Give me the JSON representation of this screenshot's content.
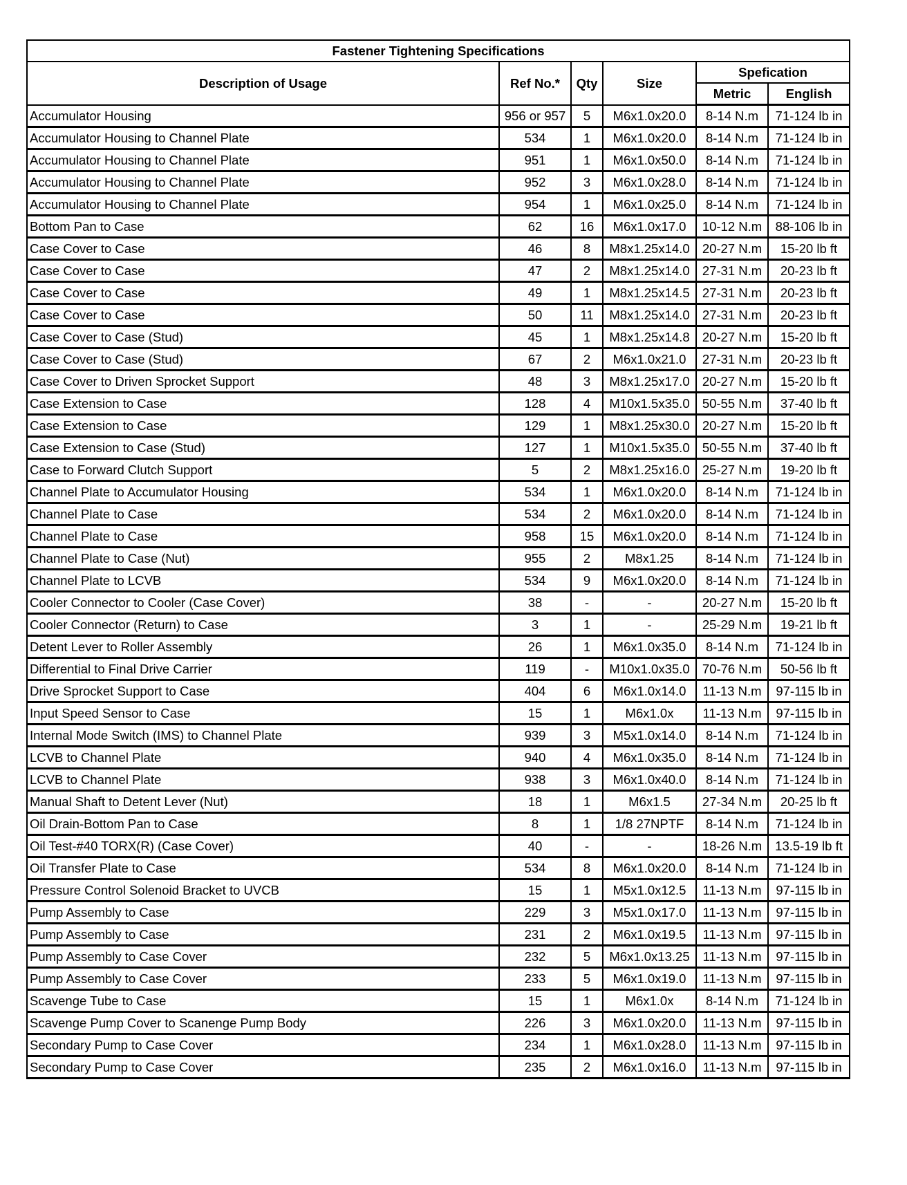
{
  "title": "Fastener Tightening Specifications",
  "headers": {
    "description": "Description of Usage",
    "ref": "Ref No.*",
    "qty": "Qty",
    "size": "Size",
    "spec": "Spefication",
    "metric": "Metric",
    "english": "English"
  },
  "rows": [
    [
      "Accumulator Housing",
      "956 or 957",
      "5",
      "M6x1.0x20.0",
      "8-14 N.m",
      "71-124 lb in"
    ],
    [
      "Accumulator Housing to Channel Plate",
      "534",
      "1",
      "M6x1.0x20.0",
      "8-14 N.m",
      "71-124 lb in"
    ],
    [
      "Accumulator Housing to Channel Plate",
      "951",
      "1",
      "M6x1.0x50.0",
      "8-14 N.m",
      "71-124 lb in"
    ],
    [
      "Accumulator Housing to Channel Plate",
      "952",
      "3",
      "M6x1.0x28.0",
      "8-14 N.m",
      "71-124 lb in"
    ],
    [
      "Accumulator Housing to Channel Plate",
      "954",
      "1",
      "M6x1.0x25.0",
      "8-14 N.m",
      "71-124 lb in"
    ],
    [
      "Bottom Pan to Case",
      "62",
      "16",
      "M6x1.0x17.0",
      "10-12 N.m",
      "88-106 lb in"
    ],
    [
      "Case Cover to Case",
      "46",
      "8",
      "M8x1.25x14.0",
      "20-27 N.m",
      "15-20 lb ft"
    ],
    [
      "Case Cover to Case",
      "47",
      "2",
      "M8x1.25x14.0",
      "27-31 N.m",
      "20-23 lb ft"
    ],
    [
      "Case Cover to Case",
      "49",
      "1",
      "M8x1.25x14.5",
      "27-31 N.m",
      "20-23 lb ft"
    ],
    [
      "Case Cover to Case",
      "50",
      "11",
      "M8x1.25x14.0",
      "27-31 N.m",
      "20-23 lb ft"
    ],
    [
      "Case Cover to Case (Stud)",
      "45",
      "1",
      "M8x1.25x14.8",
      "20-27 N.m",
      "15-20 lb ft"
    ],
    [
      "Case Cover to Case (Stud)",
      "67",
      "2",
      "M6x1.0x21.0",
      "27-31 N.m",
      "20-23 lb ft"
    ],
    [
      "Case Cover to Driven Sprocket Support",
      "48",
      "3",
      "M8x1.25x17.0",
      "20-27 N.m",
      "15-20 lb ft"
    ],
    [
      "Case Extension to Case",
      "128",
      "4",
      "M10x1.5x35.0",
      "50-55 N.m",
      "37-40 lb ft"
    ],
    [
      "Case Extension to Case",
      "129",
      "1",
      "M8x1.25x30.0",
      "20-27 N.m",
      "15-20 lb ft"
    ],
    [
      "Case Extension to Case (Stud)",
      "127",
      "1",
      "M10x1.5x35.0",
      "50-55 N.m",
      "37-40 lb ft"
    ],
    [
      "Case to Forward Clutch Support",
      "5",
      "2",
      "M8x1.25x16.0",
      "25-27 N.m",
      "19-20 lb ft"
    ],
    [
      "Channel Plate to Accumulator Housing",
      "534",
      "1",
      "M6x1.0x20.0",
      "8-14 N.m",
      "71-124 lb in"
    ],
    [
      "Channel Plate to Case",
      "534",
      "2",
      "M6x1.0x20.0",
      "8-14 N.m",
      "71-124 lb in"
    ],
    [
      "Channel Plate to Case",
      "958",
      "15",
      "M6x1.0x20.0",
      "8-14 N.m",
      "71-124 lb in"
    ],
    [
      "Channel Plate to Case (Nut)",
      "955",
      "2",
      "M8x1.25",
      "8-14 N.m",
      "71-124 lb in"
    ],
    [
      "Channel Plate to LCVB",
      "534",
      "9",
      "M6x1.0x20.0",
      "8-14 N.m",
      "71-124 lb in"
    ],
    [
      "Cooler Connector to Cooler (Case Cover)",
      "38",
      "-",
      "-",
      "20-27 N.m",
      "15-20 lb ft"
    ],
    [
      "Cooler Connector (Return) to Case",
      "3",
      "1",
      "-",
      "25-29 N.m",
      "19-21 lb ft"
    ],
    [
      "Detent Lever to Roller Assembly",
      "26",
      "1",
      "M6x1.0x35.0",
      "8-14 N.m",
      "71-124 lb in"
    ],
    [
      "Differential to Final Drive Carrier",
      "119",
      "-",
      "M10x1.0x35.0",
      "70-76 N.m",
      "50-56 lb ft"
    ],
    [
      "Drive Sprocket Support to Case",
      "404",
      "6",
      "M6x1.0x14.0",
      "11-13 N.m",
      "97-115 lb in"
    ],
    [
      "Input Speed Sensor to Case",
      "15",
      "1",
      "M6x1.0x",
      "11-13 N.m",
      "97-115 lb in"
    ],
    [
      "Internal Mode Switch (IMS) to Channel Plate",
      "939",
      "3",
      "M5x1.0x14.0",
      "8-14 N.m",
      "71-124 lb in"
    ],
    [
      "LCVB to Channel Plate",
      "940",
      "4",
      "M6x1.0x35.0",
      "8-14 N.m",
      "71-124 lb in"
    ],
    [
      "LCVB to Channel Plate",
      "938",
      "3",
      "M6x1.0x40.0",
      "8-14 N.m",
      "71-124 lb in"
    ],
    [
      "Manual Shaft to Detent Lever (Nut)",
      "18",
      "1",
      "M6x1.5",
      "27-34 N.m",
      "20-25 lb ft"
    ],
    [
      "Oil Drain-Bottom Pan to Case",
      "8",
      "1",
      "1/8 27NPTF",
      "8-14 N.m",
      "71-124 lb in"
    ],
    [
      "Oil Test-#40 TORX(R) (Case Cover)",
      "40",
      "-",
      "-",
      "18-26 N.m",
      "13.5-19 lb ft"
    ],
    [
      "Oil Transfer Plate to Case",
      "534",
      "8",
      "M6x1.0x20.0",
      "8-14 N.m",
      "71-124 lb in"
    ],
    [
      "Pressure Control Solenoid Bracket to UVCB",
      "15",
      "1",
      "M5x1.0x12.5",
      "11-13 N.m",
      "97-115 lb in"
    ],
    [
      "Pump Assembly to Case",
      "229",
      "3",
      "M5x1.0x17.0",
      "11-13 N.m",
      "97-115 lb in"
    ],
    [
      "Pump Assembly to Case",
      "231",
      "2",
      "M6x1.0x19.5",
      "11-13 N.m",
      "97-115 lb in"
    ],
    [
      "Pump Assembly to Case Cover",
      "232",
      "5",
      "M6x1.0x13.25",
      "11-13 N.m",
      "97-115 lb in"
    ],
    [
      "Pump Assembly to Case Cover",
      "233",
      "5",
      "M6x1.0x19.0",
      "11-13 N.m",
      "97-115 lb in"
    ],
    [
      "Scavenge Tube to Case",
      "15",
      "1",
      "M6x1.0x",
      "8-14 N.m",
      "71-124 lb in"
    ],
    [
      "Scavenge Pump Cover to Scanenge Pump Body",
      "226",
      "3",
      "M6x1.0x20.0",
      "11-13 N.m",
      "97-115 lb in"
    ],
    [
      "Secondary Pump to Case Cover",
      "234",
      "1",
      "M6x1.0x28.0",
      "11-13 N.m",
      "97-115 lb in"
    ],
    [
      "Secondary Pump to Case Cover",
      "235",
      "2",
      "M6x1.0x16.0",
      "11-13 N.m",
      "97-115 lb in"
    ]
  ]
}
